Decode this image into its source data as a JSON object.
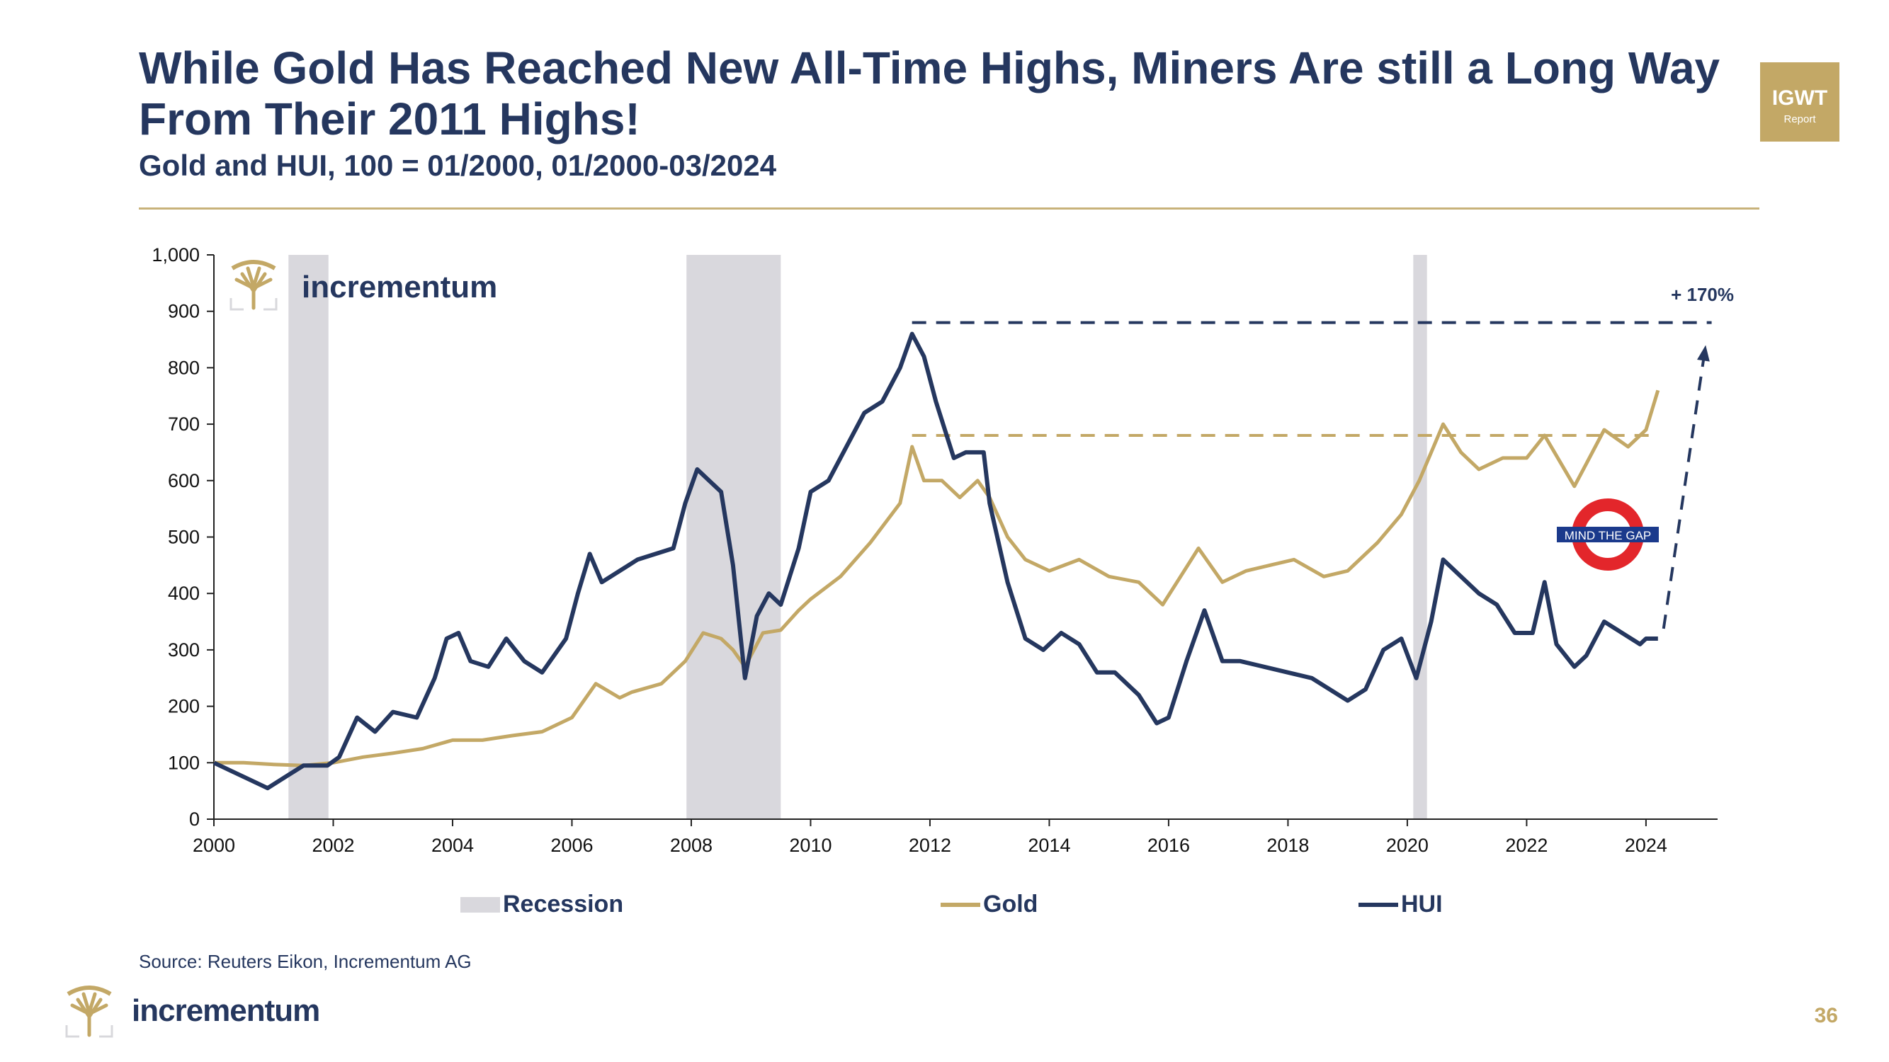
{
  "header": {
    "title": "While Gold Has Reached New All-Time Highs, Miners Are still a Long Way From Their 2011 Highs!",
    "subtitle": "Gold and HUI, 100 = 01/2000, 01/2000-03/2024",
    "badge_main": "IGWT",
    "badge_sub": "Report"
  },
  "brand": {
    "name": "incrementum",
    "gold_color": "#c3a866",
    "navy_color": "#25375f"
  },
  "footer": {
    "source": "Source: Reuters Eikon, Incrementum AG",
    "page_number": "36"
  },
  "chart_data": {
    "type": "line",
    "xlim": [
      2000,
      2025.2
    ],
    "ylim": [
      0,
      1000
    ],
    "x_ticks": [
      "2000",
      "2002",
      "2004",
      "2006",
      "2008",
      "2010",
      "2012",
      "2014",
      "2016",
      "2018",
      "2020",
      "2022",
      "2024"
    ],
    "y_ticks": [
      "0",
      "100",
      "200",
      "300",
      "400",
      "500",
      "600",
      "700",
      "800",
      "900",
      "1,000"
    ],
    "recessions": [
      [
        2001.25,
        2001.92
      ],
      [
        2007.92,
        2009.5
      ],
      [
        2020.1,
        2020.33
      ]
    ],
    "series": [
      {
        "name": "Gold",
        "color": "#c3a866",
        "points": [
          [
            2000.0,
            100
          ],
          [
            2000.5,
            100
          ],
          [
            2001.0,
            97
          ],
          [
            2001.5,
            95
          ],
          [
            2002.0,
            100
          ],
          [
            2002.5,
            110
          ],
          [
            2003.0,
            117
          ],
          [
            2003.5,
            125
          ],
          [
            2004.0,
            140
          ],
          [
            2004.5,
            140
          ],
          [
            2005.0,
            148
          ],
          [
            2005.5,
            155
          ],
          [
            2006.0,
            180
          ],
          [
            2006.4,
            240
          ],
          [
            2006.8,
            215
          ],
          [
            2007.0,
            225
          ],
          [
            2007.5,
            240
          ],
          [
            2007.9,
            280
          ],
          [
            2008.2,
            330
          ],
          [
            2008.5,
            320
          ],
          [
            2008.7,
            300
          ],
          [
            2008.9,
            270
          ],
          [
            2009.2,
            330
          ],
          [
            2009.5,
            335
          ],
          [
            2009.8,
            370
          ],
          [
            2010.0,
            390
          ],
          [
            2010.5,
            430
          ],
          [
            2011.0,
            490
          ],
          [
            2011.5,
            560
          ],
          [
            2011.7,
            660
          ],
          [
            2011.9,
            600
          ],
          [
            2012.2,
            600
          ],
          [
            2012.5,
            570
          ],
          [
            2012.8,
            600
          ],
          [
            2013.0,
            570
          ],
          [
            2013.3,
            500
          ],
          [
            2013.6,
            460
          ],
          [
            2014.0,
            440
          ],
          [
            2014.5,
            460
          ],
          [
            2015.0,
            430
          ],
          [
            2015.5,
            420
          ],
          [
            2015.9,
            380
          ],
          [
            2016.2,
            430
          ],
          [
            2016.5,
            480
          ],
          [
            2016.9,
            420
          ],
          [
            2017.3,
            440
          ],
          [
            2017.7,
            450
          ],
          [
            2018.1,
            460
          ],
          [
            2018.6,
            430
          ],
          [
            2019.0,
            440
          ],
          [
            2019.5,
            490
          ],
          [
            2019.9,
            540
          ],
          [
            2020.2,
            600
          ],
          [
            2020.6,
            700
          ],
          [
            2020.9,
            650
          ],
          [
            2021.2,
            620
          ],
          [
            2021.6,
            640
          ],
          [
            2022.0,
            640
          ],
          [
            2022.3,
            680
          ],
          [
            2022.8,
            590
          ],
          [
            2023.0,
            630
          ],
          [
            2023.3,
            690
          ],
          [
            2023.7,
            660
          ],
          [
            2024.0,
            690
          ],
          [
            2024.2,
            760
          ]
        ]
      },
      {
        "name": "HUI",
        "color": "#25375f",
        "points": [
          [
            2000.0,
            100
          ],
          [
            2000.3,
            85
          ],
          [
            2000.6,
            70
          ],
          [
            2000.9,
            55
          ],
          [
            2001.2,
            75
          ],
          [
            2001.5,
            95
          ],
          [
            2001.9,
            95
          ],
          [
            2002.1,
            110
          ],
          [
            2002.4,
            180
          ],
          [
            2002.7,
            155
          ],
          [
            2003.0,
            190
          ],
          [
            2003.4,
            180
          ],
          [
            2003.7,
            250
          ],
          [
            2003.9,
            320
          ],
          [
            2004.1,
            330
          ],
          [
            2004.3,
            280
          ],
          [
            2004.6,
            270
          ],
          [
            2004.9,
            320
          ],
          [
            2005.2,
            280
          ],
          [
            2005.5,
            260
          ],
          [
            2005.9,
            320
          ],
          [
            2006.1,
            400
          ],
          [
            2006.3,
            470
          ],
          [
            2006.5,
            420
          ],
          [
            2006.8,
            440
          ],
          [
            2007.1,
            460
          ],
          [
            2007.4,
            470
          ],
          [
            2007.7,
            480
          ],
          [
            2007.9,
            560
          ],
          [
            2008.1,
            620
          ],
          [
            2008.3,
            600
          ],
          [
            2008.5,
            580
          ],
          [
            2008.7,
            450
          ],
          [
            2008.9,
            250
          ],
          [
            2009.1,
            360
          ],
          [
            2009.3,
            400
          ],
          [
            2009.5,
            380
          ],
          [
            2009.8,
            480
          ],
          [
            2010.0,
            580
          ],
          [
            2010.3,
            600
          ],
          [
            2010.6,
            660
          ],
          [
            2010.9,
            720
          ],
          [
            2011.2,
            740
          ],
          [
            2011.5,
            800
          ],
          [
            2011.7,
            860
          ],
          [
            2011.9,
            820
          ],
          [
            2012.1,
            740
          ],
          [
            2012.4,
            640
          ],
          [
            2012.6,
            650
          ],
          [
            2012.9,
            650
          ],
          [
            2013.0,
            560
          ],
          [
            2013.3,
            420
          ],
          [
            2013.6,
            320
          ],
          [
            2013.9,
            300
          ],
          [
            2014.2,
            330
          ],
          [
            2014.5,
            310
          ],
          [
            2014.8,
            260
          ],
          [
            2015.1,
            260
          ],
          [
            2015.5,
            220
          ],
          [
            2015.8,
            170
          ],
          [
            2016.0,
            180
          ],
          [
            2016.3,
            280
          ],
          [
            2016.6,
            370
          ],
          [
            2016.9,
            280
          ],
          [
            2017.2,
            280
          ],
          [
            2017.6,
            270
          ],
          [
            2018.0,
            260
          ],
          [
            2018.4,
            250
          ],
          [
            2018.7,
            230
          ],
          [
            2019.0,
            210
          ],
          [
            2019.3,
            230
          ],
          [
            2019.6,
            300
          ],
          [
            2019.9,
            320
          ],
          [
            2020.15,
            250
          ],
          [
            2020.4,
            350
          ],
          [
            2020.6,
            460
          ],
          [
            2020.9,
            430
          ],
          [
            2021.2,
            400
          ],
          [
            2021.5,
            380
          ],
          [
            2021.8,
            330
          ],
          [
            2022.1,
            330
          ],
          [
            2022.3,
            420
          ],
          [
            2022.5,
            310
          ],
          [
            2022.8,
            270
          ],
          [
            2023.0,
            290
          ],
          [
            2023.3,
            350
          ],
          [
            2023.6,
            330
          ],
          [
            2023.9,
            310
          ],
          [
            2024.0,
            320
          ],
          [
            2024.2,
            320
          ]
        ]
      }
    ],
    "reference_lines": [
      {
        "name": "hui-2011-high-line",
        "value": 880,
        "from": 2011.7,
        "to": 2025.1,
        "color": "#25375f"
      },
      {
        "name": "gold-2011-high-line",
        "value": 680,
        "from": 2011.7,
        "to": 2024.2,
        "color": "#c3a866"
      }
    ],
    "annotations": {
      "gap_percent": "+ 170%",
      "sign_text": "MIND THE GAP"
    },
    "legend": [
      {
        "label": "Recession",
        "kind": "rect",
        "color": "#d9d8dd"
      },
      {
        "label": "Gold",
        "kind": "line",
        "color": "#c3a866"
      },
      {
        "label": "HUI",
        "kind": "line",
        "color": "#25375f"
      }
    ]
  }
}
